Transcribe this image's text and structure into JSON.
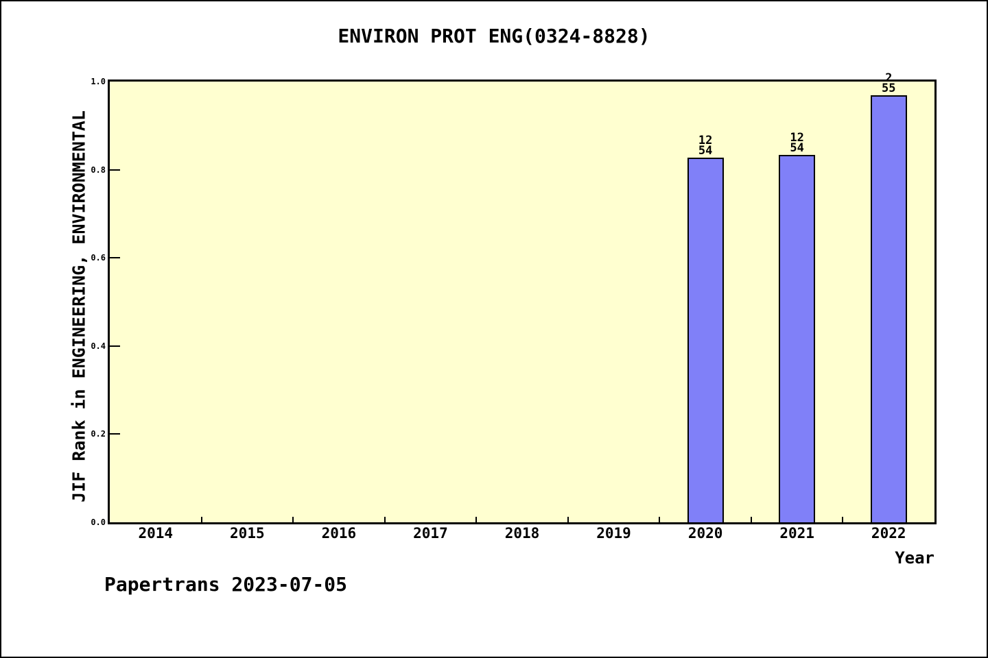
{
  "window": {
    "background": "#ffffff",
    "border_color": "#000000"
  },
  "chart_data": {
    "type": "bar",
    "title": "ENVIRON PROT ENG(0324-8828)",
    "xlabel": "Year",
    "ylabel": "JIF Rank in ENGINEERING, ENVIRONMENTAL",
    "categories": [
      "2014",
      "2015",
      "2016",
      "2017",
      "2018",
      "2019",
      "2020",
      "2021",
      "2022"
    ],
    "values": [
      null,
      null,
      null,
      null,
      null,
      null,
      0.828,
      0.833,
      0.969
    ],
    "bar_annotations": [
      null,
      null,
      null,
      null,
      null,
      null,
      "12/54",
      "12/54",
      "2/55"
    ],
    "ylim": [
      0.0,
      1.0
    ],
    "ytick_labels": [
      "0.0",
      "0.2",
      "0.4",
      "0.6",
      "0.8",
      "1.0"
    ],
    "grid": false,
    "legend": null,
    "colors": {
      "bar_fill": "#8080f8",
      "bar_edge": "#000000",
      "plot_background": "#ffffd0",
      "text": "#000000"
    }
  },
  "footer": {
    "text": "Papertrans 2023-07-05"
  }
}
